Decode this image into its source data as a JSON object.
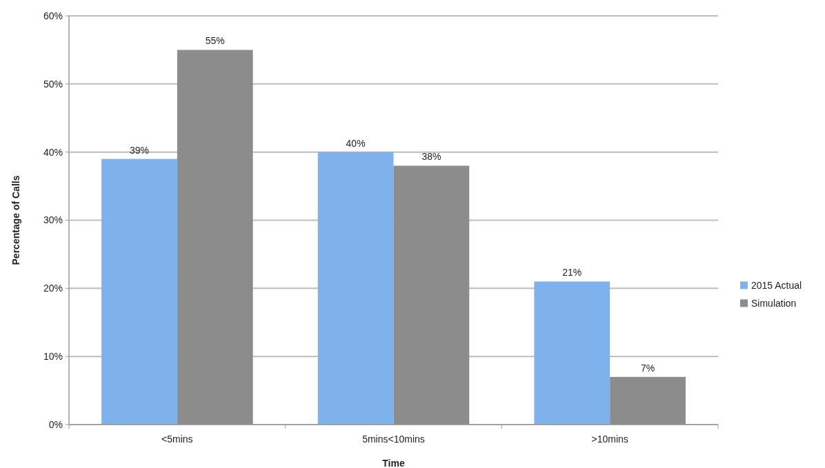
{
  "chart_data": {
    "type": "bar",
    "xlabel": "Time",
    "ylabel": "Percentage of Calls",
    "categories": [
      "<5mins",
      "5mins<10mins",
      ">10mins"
    ],
    "series": [
      {
        "name": "2015 Actual",
        "color": "#7fb2ec",
        "values": [
          39,
          40,
          21
        ],
        "value_labels": [
          "39%",
          "40%",
          "21%"
        ]
      },
      {
        "name": "Simulation",
        "color": "#8c8c8c",
        "values": [
          55,
          38,
          7
        ],
        "value_labels": [
          "55%",
          "38%",
          "7%"
        ]
      }
    ],
    "ylim": [
      0,
      60
    ],
    "yticks": [
      {
        "value": 0,
        "label": "0%"
      },
      {
        "value": 10,
        "label": "10%"
      },
      {
        "value": 20,
        "label": "20%"
      },
      {
        "value": 30,
        "label": "30%"
      },
      {
        "value": 40,
        "label": "40%"
      },
      {
        "value": 50,
        "label": "50%"
      },
      {
        "value": 60,
        "label": "60%"
      }
    ],
    "grid": "y",
    "legend": "right"
  }
}
